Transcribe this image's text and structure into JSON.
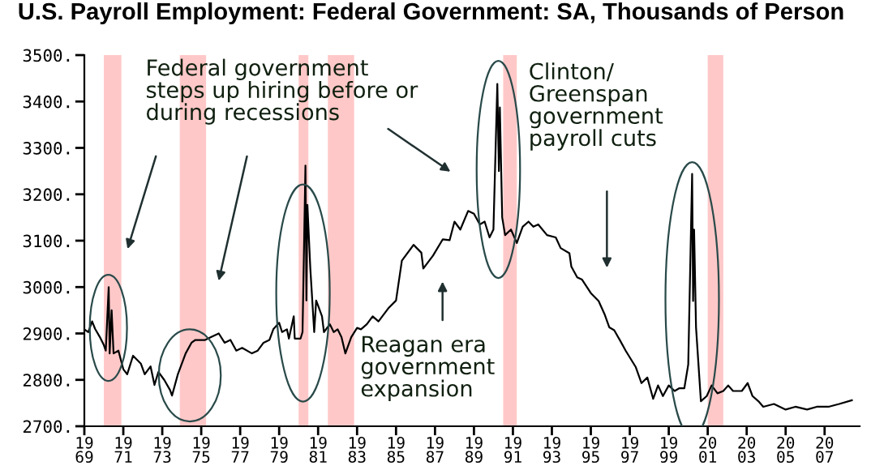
{
  "chart_data": {
    "type": "line",
    "title": "U.S. Payroll Employment: Federal Government: SA, Thousands of Person",
    "annotations": [
      "Federal government\nsteps up hiring before or\nduring recessions",
      "Clinton/\nGreenspan\ngovernment\npayroll cuts",
      "Reagan era\ngovernment\nexpansion"
    ],
    "series": [
      {
        "color": "#000000",
        "x": [
          1969,
          1969.2,
          1969.4,
          1969.55,
          1969.8,
          1970.0,
          1970.1,
          1970.25,
          1970.3,
          1970.4,
          1970.5,
          1970.75,
          1971.0,
          1971.2,
          1971.5,
          1971.9,
          1972.1,
          1972.4,
          1972.6,
          1972.8,
          1973.1,
          1973.4,
          1973.5,
          1973.8,
          1974.2,
          1974.5,
          1974.7,
          1975.2,
          1975.5,
          1975.9,
          1976.2,
          1976.5,
          1976.8,
          1977.1,
          1977.6,
          1977.9,
          1978.2,
          1978.5,
          1978.7,
          1979.0,
          1979.15,
          1979.4,
          1979.5,
          1979.75,
          1979.8,
          1980.1,
          1980.2,
          1980.35,
          1980.4,
          1980.45,
          1980.6,
          1980.8,
          1980.9,
          1981.0,
          1981.2,
          1981.3,
          1981.6,
          1981.8,
          1982.0,
          1982.2,
          1982.4,
          1982.7,
          1983.0,
          1983.2,
          1983.5,
          1983.8,
          1984.1,
          1984.6,
          1985.0,
          1985.3,
          1985.9,
          1986.3,
          1986.4,
          1986.9,
          1987.4,
          1987.75,
          1988.0,
          1988.3,
          1988.7,
          1989.0,
          1989.3,
          1989.55,
          1989.8,
          1990.0,
          1990.2,
          1990.28,
          1990.33,
          1990.45,
          1990.6,
          1990.9,
          1991.2,
          1991.5,
          1991.8,
          1992.05,
          1992.3,
          1992.75,
          1993.2,
          1993.45,
          1993.9,
          1994.0,
          1994.3,
          1994.55,
          1995.0,
          1995.4,
          1995.7,
          1995.95,
          1996.2,
          1996.5,
          1996.8,
          1997.05,
          1997.3,
          1997.6,
          1997.9,
          1998.2,
          1998.45,
          1998.7,
          1999.0,
          1999.3,
          1999.55,
          1999.8,
          2000.0,
          2000.2,
          2000.25,
          2000.3,
          2000.4,
          2000.65,
          2000.95,
          2001.2,
          2001.5,
          2001.8,
          2002.05,
          2002.3,
          2002.75,
          2003.05,
          2003.3,
          2003.6,
          2003.85,
          2004.4,
          2005.0,
          2005.5,
          2006.1,
          2006.6,
          2007.2,
          2007.75,
          2008.4
        ],
        "values": [
          2909,
          2903,
          2926,
          2910,
          2892,
          2875,
          2863,
          3000,
          2857,
          2950,
          2857,
          2863,
          2823,
          2812,
          2852,
          2835,
          2812,
          2829,
          2789,
          2817,
          2800,
          2778,
          2766,
          2812,
          2857,
          2880,
          2886,
          2886,
          2892,
          2900,
          2880,
          2886,
          2863,
          2869,
          2857,
          2863,
          2880,
          2886,
          2909,
          2923,
          2903,
          2909,
          2889,
          2937,
          2889,
          2889,
          2903,
          3262,
          2971,
          3177,
          3040,
          2903,
          2971,
          2960,
          2937,
          2903,
          2920,
          2903,
          2909,
          2892,
          2857,
          2892,
          2912,
          2909,
          2920,
          2937,
          2926,
          2954,
          2971,
          3057,
          3091,
          3074,
          3040,
          3068,
          3103,
          3101,
          3141,
          3124,
          3164,
          3158,
          3135,
          3141,
          3107,
          3124,
          3438,
          3250,
          3387,
          3150,
          3112,
          3124,
          3095,
          3130,
          3141,
          3130,
          3135,
          3112,
          3107,
          3084,
          3073,
          3044,
          3021,
          3016,
          2987,
          2970,
          2942,
          2913,
          2907,
          2885,
          2862,
          2845,
          2828,
          2793,
          2805,
          2759,
          2788,
          2765,
          2788,
          2776,
          2782,
          2782,
          2833,
          3244,
          2970,
          3124,
          2913,
          2754,
          2765,
          2788,
          2771,
          2776,
          2788,
          2776,
          2776,
          2793,
          2765,
          2754,
          2742,
          2748,
          2736,
          2742,
          2736,
          2742,
          2742,
          2748,
          2756
        ]
      }
    ],
    "xlim": [
      1969,
      2008.8
    ],
    "ylim": [
      2700,
      3500
    ],
    "xticks": [
      1969,
      1971,
      1973,
      1975,
      1977,
      1979,
      1981,
      1983,
      1985,
      1987,
      1989,
      1991,
      1993,
      1995,
      1997,
      1999,
      2001,
      2003,
      2005,
      2007
    ],
    "yticks": [
      {
        "value": 2700,
        "label": "2700."
      },
      {
        "value": 2800,
        "label": "2800."
      },
      {
        "value": 2900,
        "label": "2900."
      },
      {
        "value": 3000,
        "label": "3000."
      },
      {
        "value": 3100,
        "label": "3100."
      },
      {
        "value": 3200,
        "label": "3200."
      },
      {
        "value": 3300,
        "label": "3300."
      },
      {
        "value": 3400,
        "label": "3400."
      },
      {
        "value": 3500,
        "label": "3500."
      }
    ],
    "bands": [
      {
        "axis": "x",
        "from": 1970.0,
        "to": 1970.9,
        "color": "#ffc8c8"
      },
      {
        "axis": "x",
        "from": 1973.9,
        "to": 1975.25,
        "color": "#ffc8c8"
      },
      {
        "axis": "x",
        "from": 1980.0,
        "to": 1980.5,
        "color": "#ffc8c8"
      },
      {
        "axis": "x",
        "from": 1981.5,
        "to": 1982.85,
        "color": "#ffc8c8"
      },
      {
        "axis": "x",
        "from": 1990.5,
        "to": 1991.2,
        "color": "#ffc8c8"
      },
      {
        "axis": "x",
        "from": 2001.0,
        "to": 2001.8,
        "color": "#ffc8c8"
      }
    ],
    "grid": false,
    "line_style": "solid",
    "marker": "none"
  }
}
